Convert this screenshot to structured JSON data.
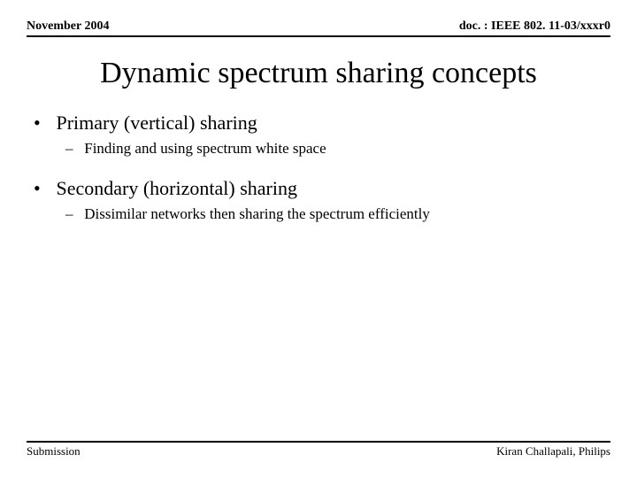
{
  "header": {
    "left": "November 2004",
    "right": "doc. : IEEE 802. 11-03/xxxr0"
  },
  "title": "Dynamic spectrum sharing concepts",
  "bullets": [
    {
      "text": "Primary (vertical) sharing",
      "sub": [
        "Finding and using spectrum white space"
      ]
    },
    {
      "text": "Secondary (horizontal) sharing",
      "sub": [
        "Dissimilar networks then sharing the spectrum efficiently"
      ]
    }
  ],
  "footer": {
    "left": "Submission",
    "right": "Kiran Challapali, Philips"
  },
  "colors": {
    "text": "#000000",
    "background": "#ffffff",
    "rule": "#000000"
  },
  "typography": {
    "family": "Times New Roman",
    "title_size_pt": 34,
    "bullet_l1_size_pt": 22,
    "bullet_l2_size_pt": 17,
    "header_size_pt": 14,
    "footer_size_pt": 13
  }
}
